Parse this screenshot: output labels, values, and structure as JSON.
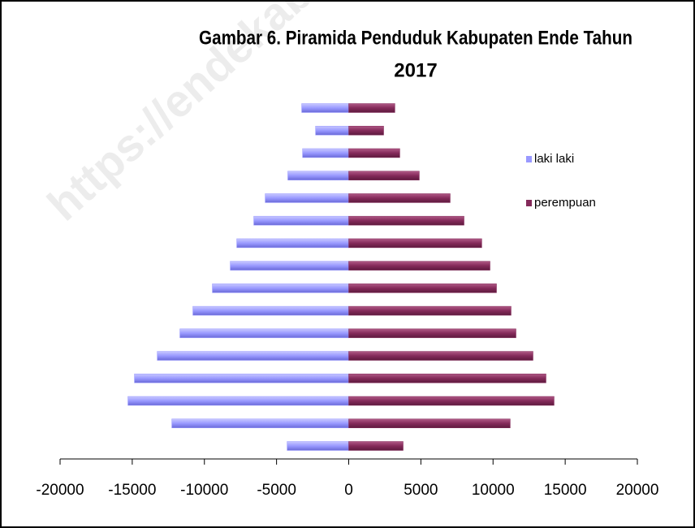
{
  "chart_data": {
    "type": "bar",
    "orientation": "horizontal",
    "title": [
      "Gambar 6.  Piramida Penduduk Kabupaten Ende Tahun",
      "2017"
    ],
    "watermark": "https://endekab.",
    "categories": [
      null,
      null,
      null,
      null,
      null,
      null,
      null,
      null,
      null,
      null,
      null,
      null,
      null,
      null,
      null,
      null
    ],
    "series": [
      {
        "name": "laki laki",
        "color": "#9999ff",
        "values": [
          -3260,
          -2300,
          -3200,
          -4220,
          -5790,
          -6580,
          -7760,
          -8210,
          -9450,
          -10800,
          -11700,
          -13270,
          -14850,
          -15300,
          -12260,
          -4270
        ]
      },
      {
        "name": "perempuan",
        "color": "#842a5a",
        "values": [
          3200,
          2420,
          3540,
          4890,
          7030,
          7990,
          9220,
          9790,
          10240,
          11250,
          11590,
          12770,
          13670,
          14230,
          11190,
          3770
        ]
      }
    ],
    "xlim": [
      -20000,
      20000
    ],
    "xticks": [
      -20000,
      -15000,
      -10000,
      -5000,
      0,
      5000,
      10000,
      15000,
      20000
    ],
    "legend": "right"
  }
}
